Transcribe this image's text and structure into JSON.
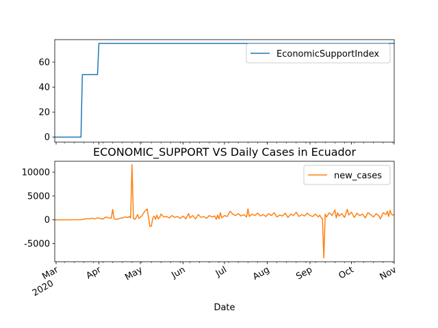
{
  "chart_data": [
    {
      "type": "line",
      "title": "",
      "xlabel": "",
      "ylabel": "",
      "ylim": [
        -4,
        78
      ],
      "yticks": [
        0,
        20,
        40,
        60
      ],
      "legend_placement": "upper right",
      "grid": false,
      "series": [
        {
          "name": "EconomicSupportIndex",
          "color": "#1f77b4",
          "points": [
            [
              "2020-02-29",
              0
            ],
            [
              "2020-03-19",
              0
            ],
            [
              "2020-03-20",
              50
            ],
            [
              "2020-03-31",
              50
            ],
            [
              "2020-04-01",
              75
            ],
            [
              "2020-11-01",
              75
            ]
          ]
        }
      ]
    },
    {
      "type": "line",
      "title": "ECONOMIC_SUPPORT VS Daily Cases in Ecuador",
      "xlabel": "Date",
      "ylabel": "",
      "ylim": [
        -8800,
        12300
      ],
      "yticks": [
        -5000,
        0,
        5000,
        10000
      ],
      "xrange": [
        "2020-02-29",
        "2020-11-01"
      ],
      "xticks": [
        {
          "date": "2020-03-01",
          "label": "Mar",
          "sublabel": "2020"
        },
        {
          "date": "2020-04-01",
          "label": "Apr",
          "sublabel": ""
        },
        {
          "date": "2020-05-01",
          "label": "May",
          "sublabel": ""
        },
        {
          "date": "2020-06-01",
          "label": "Jun",
          "sublabel": ""
        },
        {
          "date": "2020-07-01",
          "label": "Jul",
          "sublabel": ""
        },
        {
          "date": "2020-08-01",
          "label": "Aug",
          "sublabel": ""
        },
        {
          "date": "2020-09-01",
          "label": "Sep",
          "sublabel": ""
        },
        {
          "date": "2020-10-01",
          "label": "Oct",
          "sublabel": ""
        },
        {
          "date": "2020-11-01",
          "label": "Nov",
          "sublabel": ""
        }
      ],
      "legend_placement": "upper right",
      "grid": false,
      "series": [
        {
          "name": "new_cases",
          "color": "#ff7f0e",
          "points": [
            [
              "2020-02-29",
              0
            ],
            [
              "2020-03-10",
              10
            ],
            [
              "2020-03-19",
              30
            ],
            [
              "2020-03-21",
              120
            ],
            [
              "2020-03-23",
              250
            ],
            [
              "2020-03-25",
              200
            ],
            [
              "2020-03-27",
              350
            ],
            [
              "2020-03-29",
              200
            ],
            [
              "2020-03-31",
              400
            ],
            [
              "2020-04-02",
              300
            ],
            [
              "2020-04-04",
              150
            ],
            [
              "2020-04-06",
              600
            ],
            [
              "2020-04-08",
              400
            ],
            [
              "2020-04-10",
              350
            ],
            [
              "2020-04-11",
              2200
            ],
            [
              "2020-04-12",
              200
            ],
            [
              "2020-04-14",
              100
            ],
            [
              "2020-04-16",
              300
            ],
            [
              "2020-04-18",
              400
            ],
            [
              "2020-04-20",
              600
            ],
            [
              "2020-04-22",
              500
            ],
            [
              "2020-04-23",
              700
            ],
            [
              "2020-04-24",
              400
            ],
            [
              "2020-04-25",
              11600
            ],
            [
              "2020-04-26",
              300
            ],
            [
              "2020-04-27",
              100
            ],
            [
              "2020-04-28",
              500
            ],
            [
              "2020-04-29",
              1100
            ],
            [
              "2020-04-30",
              300
            ],
            [
              "2020-05-02",
              800
            ],
            [
              "2020-05-04",
              1700
            ],
            [
              "2020-05-06",
              2300
            ],
            [
              "2020-05-07",
              400
            ],
            [
              "2020-05-08",
              -1400
            ],
            [
              "2020-05-09",
              -1300
            ],
            [
              "2020-05-10",
              300
            ],
            [
              "2020-05-11",
              800
            ],
            [
              "2020-05-12",
              100
            ],
            [
              "2020-05-13",
              1000
            ],
            [
              "2020-05-14",
              200
            ],
            [
              "2020-05-15",
              500
            ],
            [
              "2020-05-16",
              1200
            ],
            [
              "2020-05-18",
              600
            ],
            [
              "2020-05-20",
              700
            ],
            [
              "2020-05-22",
              400
            ],
            [
              "2020-05-24",
              900
            ],
            [
              "2020-05-26",
              500
            ],
            [
              "2020-05-28",
              700
            ],
            [
              "2020-05-30",
              300
            ],
            [
              "2020-06-01",
              800
            ],
            [
              "2020-06-03",
              200
            ],
            [
              "2020-06-05",
              1300
            ],
            [
              "2020-06-06",
              400
            ],
            [
              "2020-06-08",
              900
            ],
            [
              "2020-06-10",
              200
            ],
            [
              "2020-06-12",
              1100
            ],
            [
              "2020-06-14",
              500
            ],
            [
              "2020-06-16",
              700
            ],
            [
              "2020-06-18",
              300
            ],
            [
              "2020-06-20",
              900
            ],
            [
              "2020-06-22",
              600
            ],
            [
              "2020-06-24",
              800
            ],
            [
              "2020-06-25",
              100
            ],
            [
              "2020-06-26",
              1000
            ],
            [
              "2020-06-27",
              200
            ],
            [
              "2020-06-28",
              1500
            ],
            [
              "2020-06-29",
              400
            ],
            [
              "2020-07-01",
              900
            ],
            [
              "2020-07-03",
              700
            ],
            [
              "2020-07-05",
              1800
            ],
            [
              "2020-07-07",
              1200
            ],
            [
              "2020-07-09",
              900
            ],
            [
              "2020-07-11",
              1300
            ],
            [
              "2020-07-13",
              800
            ],
            [
              "2020-07-15",
              1100
            ],
            [
              "2020-07-17",
              600
            ],
            [
              "2020-07-18",
              2300
            ],
            [
              "2020-07-19",
              700
            ],
            [
              "2020-07-21",
              1200
            ],
            [
              "2020-07-23",
              900
            ],
            [
              "2020-07-25",
              1400
            ],
            [
              "2020-07-27",
              800
            ],
            [
              "2020-07-29",
              1100
            ],
            [
              "2020-07-31",
              700
            ],
            [
              "2020-08-02",
              1300
            ],
            [
              "2020-08-04",
              900
            ],
            [
              "2020-08-06",
              1500
            ],
            [
              "2020-08-08",
              600
            ],
            [
              "2020-08-10",
              1000
            ],
            [
              "2020-08-12",
              800
            ],
            [
              "2020-08-14",
              1400
            ],
            [
              "2020-08-16",
              500
            ],
            [
              "2020-08-18",
              1200
            ],
            [
              "2020-08-20",
              900
            ],
            [
              "2020-08-22",
              1600
            ],
            [
              "2020-08-24",
              700
            ],
            [
              "2020-08-26",
              1100
            ],
            [
              "2020-08-28",
              800
            ],
            [
              "2020-08-30",
              1400
            ],
            [
              "2020-09-01",
              900
            ],
            [
              "2020-09-03",
              700
            ],
            [
              "2020-09-05",
              1200
            ],
            [
              "2020-09-07",
              600
            ],
            [
              "2020-09-08",
              1000
            ],
            [
              "2020-09-09",
              500
            ],
            [
              "2020-09-10",
              200
            ],
            [
              "2020-09-11",
              -8000
            ],
            [
              "2020-09-12",
              1200
            ],
            [
              "2020-09-13",
              600
            ],
            [
              "2020-09-15",
              1500
            ],
            [
              "2020-09-17",
              900
            ],
            [
              "2020-09-19",
              2100
            ],
            [
              "2020-09-20",
              400
            ],
            [
              "2020-09-21",
              1500
            ],
            [
              "2020-09-22",
              800
            ],
            [
              "2020-09-24",
              1300
            ],
            [
              "2020-09-26",
              500
            ],
            [
              "2020-09-28",
              2200
            ],
            [
              "2020-09-29",
              1000
            ],
            [
              "2020-10-01",
              1600
            ],
            [
              "2020-10-03",
              500
            ],
            [
              "2020-10-05",
              1400
            ],
            [
              "2020-10-07",
              900
            ],
            [
              "2020-10-09",
              1200
            ],
            [
              "2020-10-11",
              400
            ],
            [
              "2020-10-13",
              1500
            ],
            [
              "2020-10-15",
              1100
            ],
            [
              "2020-10-17",
              600
            ],
            [
              "2020-10-19",
              1300
            ],
            [
              "2020-10-21",
              800
            ],
            [
              "2020-10-22",
              200
            ],
            [
              "2020-10-24",
              1500
            ],
            [
              "2020-10-26",
              1100
            ],
            [
              "2020-10-27",
              1800
            ],
            [
              "2020-10-28",
              700
            ],
            [
              "2020-10-29",
              2000
            ],
            [
              "2020-10-30",
              1200
            ],
            [
              "2020-10-31",
              1000
            ],
            [
              "2020-11-01",
              1100
            ]
          ]
        }
      ]
    }
  ]
}
